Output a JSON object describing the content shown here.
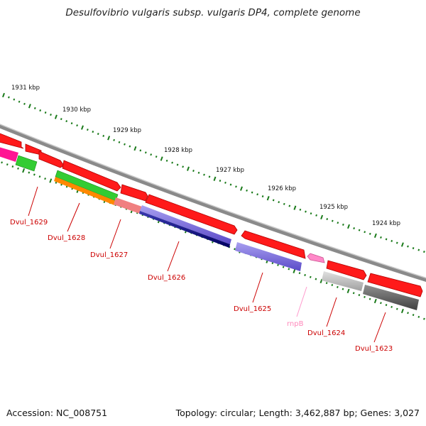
{
  "title": "Desulfovibrio vulgaris subsp. vulgaris DP4, complete genome",
  "footer": {
    "accession": "Accession: NC_008751",
    "topology": "Topology: circular; Length: 3,462,887 bp; Genes: 3,027"
  },
  "scale": {
    "tick_color": "#1a7a1a",
    "labels": [
      "1931 kbp",
      "1930 kbp",
      "1929 kbp",
      "1928 kbp",
      "1927 kbp",
      "1926 kbp",
      "1925 kbp",
      "1924 kbp"
    ]
  },
  "genes": [
    {
      "name": "Dvul_1629",
      "color": "#ff2020"
    },
    {
      "name": "Dvul_1628",
      "color": "#ff2020"
    },
    {
      "name": "Dvul_1627",
      "color": "#ff2020"
    },
    {
      "name": "Dvul_1626",
      "color": "#ff2020"
    },
    {
      "name": "Dvul_1625",
      "color": "#ff2020"
    },
    {
      "name": "rnpB",
      "color": "#ff99cc"
    },
    {
      "name": "Dvul_1624",
      "color": "#ff2020"
    },
    {
      "name": "Dvul_1623",
      "color": "#ff2020"
    }
  ],
  "colors": {
    "cds": "#ff0000",
    "rna": "#ff88cc",
    "backbone": "#808080",
    "magenta": "#ff1493",
    "green": "#33cc33",
    "orange": "#ff8800",
    "salmon": "#f08080",
    "slate_blue": "#6a5acd",
    "navy": "#000080",
    "silver": "#b0b0b0",
    "dark_gray": "#606060"
  }
}
